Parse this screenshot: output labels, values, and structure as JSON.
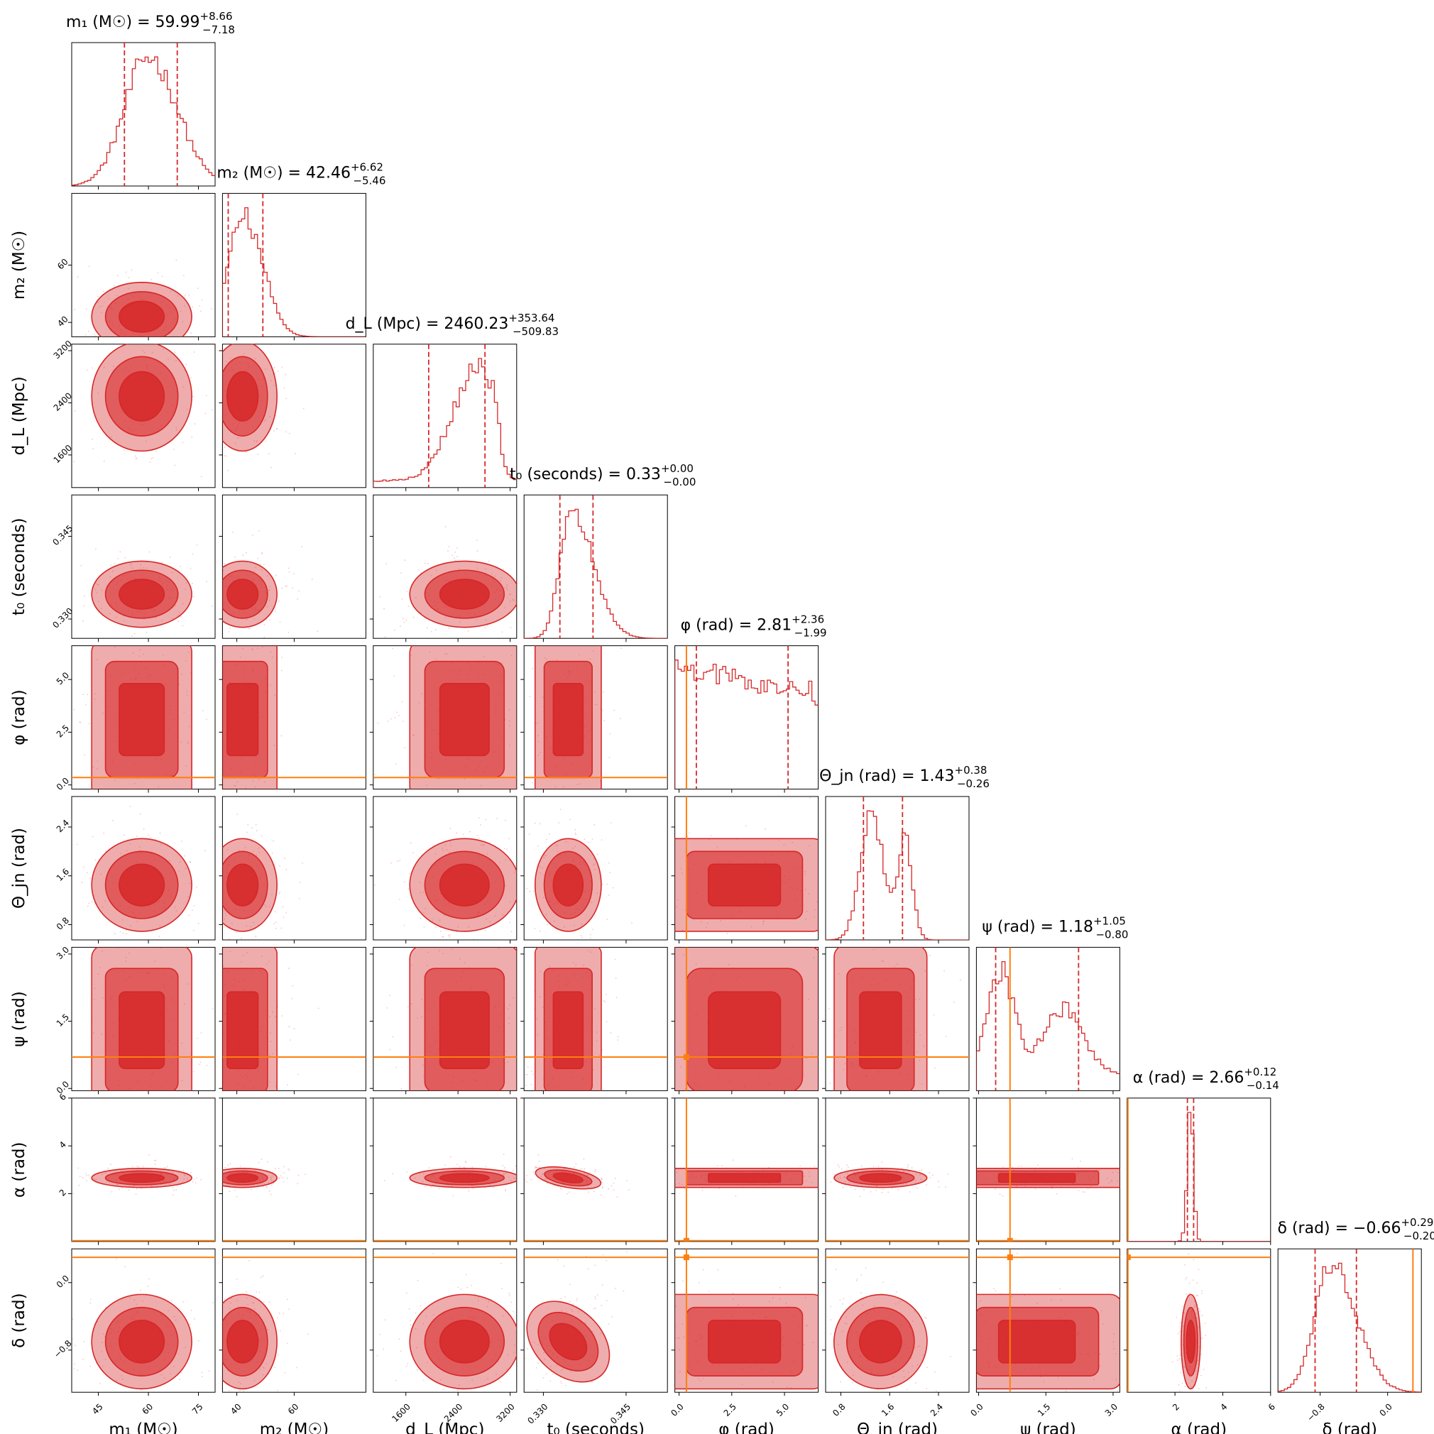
{
  "chart_data": {
    "type": "corner",
    "series_color": "#d62728",
    "truth_color": "#ff7f0e",
    "parameters": [
      {
        "key": "m1",
        "label": "m₁ (M☉)",
        "title_main": "m₁ (M☉) = 59.99",
        "title_plus": "+8.66",
        "title_minus": "−7.18",
        "median": 59.99,
        "plus": 8.66,
        "minus": 7.18,
        "range": [
          37,
          80
        ],
        "ticks": [
          "45",
          "60",
          "75"
        ],
        "tick_values": [
          45,
          60,
          75
        ],
        "truth": null
      },
      {
        "key": "m2",
        "label": "m₂ (M☉)",
        "title_main": "m₂ (M☉) = 42.46",
        "title_plus": "+6.62",
        "title_minus": "−5.46",
        "median": 42.46,
        "plus": 6.62,
        "minus": 5.46,
        "range": [
          35,
          85
        ],
        "ticks": [
          "40",
          "60"
        ],
        "tick_values": [
          40,
          60
        ],
        "truth": null
      },
      {
        "key": "dL",
        "label": "d_L (Mpc)",
        "title_main": "d_L (Mpc) = 2460.23",
        "title_plus": "+353.64",
        "title_minus": "−509.83",
        "median": 2460.23,
        "plus": 353.64,
        "minus": 509.83,
        "range": [
          1100,
          3300
        ],
        "ticks": [
          "1600",
          "2400",
          "3200"
        ],
        "tick_values": [
          1600,
          2400,
          3200
        ],
        "truth": null
      },
      {
        "key": "t0",
        "label": "t₀ (seconds)",
        "title_main": "t₀ (seconds) = 0.33",
        "title_plus": "+0.00",
        "title_minus": "−0.00",
        "median": 0.335,
        "plus": 0.004,
        "minus": 0.002,
        "range": [
          0.3265,
          0.3525
        ],
        "ticks": [
          "0.330",
          "0.345"
        ],
        "tick_values": [
          0.33,
          0.345
        ],
        "truth": null
      },
      {
        "key": "phi",
        "label": "φ (rad)",
        "title_main": "φ (rad) = 2.81",
        "title_plus": "+2.36",
        "title_minus": "−1.99",
        "median": 2.81,
        "plus": 2.36,
        "minus": 1.99,
        "range": [
          -0.2,
          6.6
        ],
        "ticks": [
          "0.0",
          "2.5",
          "5.0"
        ],
        "tick_values": [
          0,
          2.5,
          5
        ],
        "truth": 0.35
      },
      {
        "key": "thetajn",
        "label": "Θ_jn (rad)",
        "title_main": "Θ_jn (rad) = 1.43",
        "title_plus": "+0.38",
        "title_minus": "−0.26",
        "median": 1.43,
        "plus": 0.38,
        "minus": 0.26,
        "range": [
          0.55,
          2.9
        ],
        "ticks": [
          "0.8",
          "1.6",
          "2.4"
        ],
        "tick_values": [
          0.8,
          1.6,
          2.4
        ],
        "truth": null
      },
      {
        "key": "psi",
        "label": "ψ (rad)",
        "title_main": "ψ (rad) = 1.18",
        "title_plus": "+1.05",
        "title_minus": "−0.80",
        "median": 1.18,
        "plus": 1.05,
        "minus": 0.8,
        "range": [
          -0.05,
          3.15
        ],
        "ticks": [
          "0.0",
          "1.5",
          "3.0"
        ],
        "tick_values": [
          0,
          1.5,
          3
        ],
        "truth": 0.7
      },
      {
        "key": "alpha",
        "label": "α (rad)",
        "title_main": "α (rad) = 2.66",
        "title_plus": "+0.12",
        "title_minus": "−0.14",
        "median": 2.66,
        "plus": 0.12,
        "minus": 0.14,
        "range": [
          0,
          6
        ],
        "ticks": [
          "2",
          "4",
          "6"
        ],
        "tick_values": [
          2,
          4,
          6
        ],
        "truth": 0.03
      },
      {
        "key": "delta",
        "label": "δ (rad)",
        "title_main": "δ (rad) = −0.66",
        "title_plus": "+0.29",
        "title_minus": "−0.20",
        "median": -0.66,
        "plus": 0.29,
        "minus": 0.2,
        "range": [
          -1.3,
          0.4
        ],
        "ticks": [
          "−0.8",
          "0.0"
        ],
        "tick_values": [
          -0.8,
          0
        ],
        "truth": 0.3
      }
    ]
  }
}
